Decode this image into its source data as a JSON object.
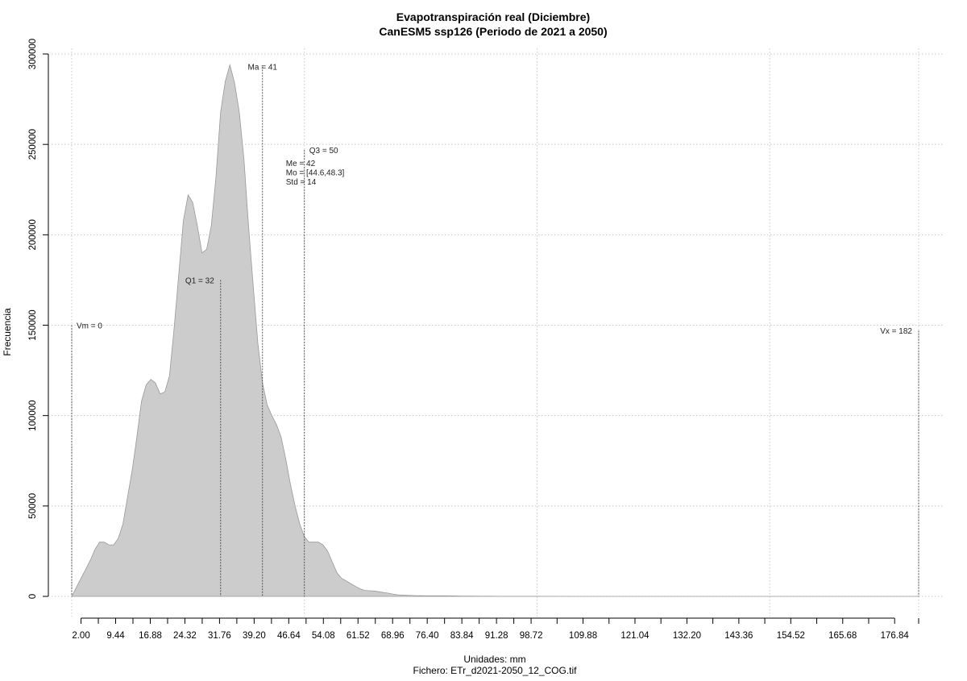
{
  "chart_data": {
    "type": "area",
    "title": "Evapotranspiración real (Diciembre)",
    "subtitle": "CanESM5 ssp126 (Periodo de 2021 a 2050)",
    "xlabel": "Unidades: mm",
    "caption": "Fichero: ETr_d2021-2050_12_COG.tif",
    "ylabel": "Frecuencia",
    "grid": true,
    "xlim": [
      0,
      182
    ],
    "ylim": [
      0,
      300000
    ],
    "y_ticks": [
      0,
      50000,
      100000,
      150000,
      200000,
      250000,
      300000
    ],
    "y_tick_labels": [
      "0",
      "50000",
      "100000",
      "150000",
      "200000",
      "250000",
      "300000"
    ],
    "x_grid": [
      0,
      50,
      100,
      150,
      182
    ],
    "x_tick_values": [
      2.0,
      5.72,
      9.44,
      13.16,
      16.88,
      20.6,
      24.32,
      28.04,
      31.76,
      35.48,
      39.2,
      42.92,
      46.64,
      50.36,
      54.08,
      57.8,
      61.52,
      65.24,
      68.96,
      72.68,
      76.4,
      80.12,
      83.84,
      87.56,
      91.28,
      95.0,
      98.72,
      104.3,
      109.88,
      115.46,
      121.04,
      126.62,
      132.2,
      137.78,
      143.36,
      148.94,
      154.52,
      160.1,
      165.68,
      171.26,
      176.84,
      182.0
    ],
    "x_tick_labels": [
      {
        "value": 2.0,
        "label": "2.00"
      },
      {
        "value": 9.44,
        "label": "9.44"
      },
      {
        "value": 16.88,
        "label": "16.88"
      },
      {
        "value": 24.32,
        "label": "24.32"
      },
      {
        "value": 31.76,
        "label": "31.76"
      },
      {
        "value": 39.2,
        "label": "39.20"
      },
      {
        "value": 46.64,
        "label": "46.64"
      },
      {
        "value": 54.08,
        "label": "54.08"
      },
      {
        "value": 61.52,
        "label": "61.52"
      },
      {
        "value": 68.96,
        "label": "68.96"
      },
      {
        "value": 76.4,
        "label": "76.40"
      },
      {
        "value": 83.84,
        "label": "83.84"
      },
      {
        "value": 91.28,
        "label": "91.28"
      },
      {
        "value": 98.72,
        "label": "98.72"
      },
      {
        "value": 109.88,
        "label": "109.88"
      },
      {
        "value": 121.04,
        "label": "121.04"
      },
      {
        "value": 132.2,
        "label": "132.20"
      },
      {
        "value": 143.36,
        "label": "143.36"
      },
      {
        "value": 154.52,
        "label": "154.52"
      },
      {
        "value": 165.68,
        "label": "165.68"
      },
      {
        "value": 176.84,
        "label": "176.84"
      }
    ],
    "fill_color": "#cccccc",
    "line_color": "#999999",
    "density": {
      "x": [
        0,
        1,
        2,
        3,
        4,
        5,
        6,
        7,
        8,
        9,
        10,
        11,
        12,
        13,
        14,
        15,
        16,
        17,
        18,
        19,
        20,
        21,
        22,
        23,
        24,
        25,
        26,
        27,
        28,
        29,
        30,
        31,
        32,
        33,
        34,
        35,
        36,
        37,
        38,
        39,
        40,
        41,
        42,
        43,
        44,
        45,
        46,
        47,
        48,
        49,
        50,
        51,
        52,
        53,
        54,
        55,
        56,
        57,
        58,
        59,
        60,
        61,
        62,
        63,
        64,
        65,
        66,
        67,
        68,
        69,
        70,
        71,
        72,
        73,
        74,
        75,
        76,
        77,
        78,
        79,
        80,
        82,
        84,
        86,
        88,
        90,
        92,
        95,
        100,
        110,
        120,
        140,
        160,
        180,
        182
      ],
      "y": [
        0,
        5000,
        10000,
        15000,
        20000,
        26000,
        30000,
        30000,
        28500,
        28500,
        32000,
        40000,
        55000,
        70000,
        88000,
        108000,
        117000,
        120000,
        118000,
        112000,
        113000,
        122000,
        148000,
        178000,
        208000,
        222000,
        218000,
        205000,
        190000,
        192000,
        205000,
        232000,
        268000,
        285000,
        294000,
        284000,
        268000,
        242000,
        205000,
        172000,
        140000,
        118000,
        106000,
        100000,
        95000,
        88000,
        76000,
        62000,
        50000,
        40000,
        33000,
        30000,
        30000,
        30000,
        28500,
        25000,
        19000,
        13000,
        10000,
        8500,
        7000,
        5500,
        4200,
        3300,
        3100,
        3000,
        2600,
        2200,
        1800,
        1300,
        900,
        700,
        600,
        500,
        400,
        350,
        300,
        300,
        300,
        300,
        300,
        250,
        200,
        150,
        100,
        80,
        60,
        40,
        30,
        20,
        10,
        5,
        0,
        0,
        0
      ]
    },
    "reference_lines": [
      {
        "value": 0,
        "height": 150000,
        "label": "Vm = 0",
        "label_pos": "right"
      },
      {
        "value": 32,
        "height": 175000,
        "label": "Q1 = 32",
        "label_pos": "left"
      },
      {
        "value": 41,
        "height": 293000,
        "label": "Ma = 41",
        "label_pos": "center"
      },
      {
        "value": 50,
        "height": 247000,
        "label": "Q3 = 50",
        "label_pos": "right"
      },
      {
        "value": 182,
        "height": 147000,
        "label": "Vx = 182",
        "label_pos": "left"
      }
    ],
    "stats_text": [
      "Me = 42",
      "Mo = [44.6,48.3]",
      "Std = 14"
    ]
  }
}
